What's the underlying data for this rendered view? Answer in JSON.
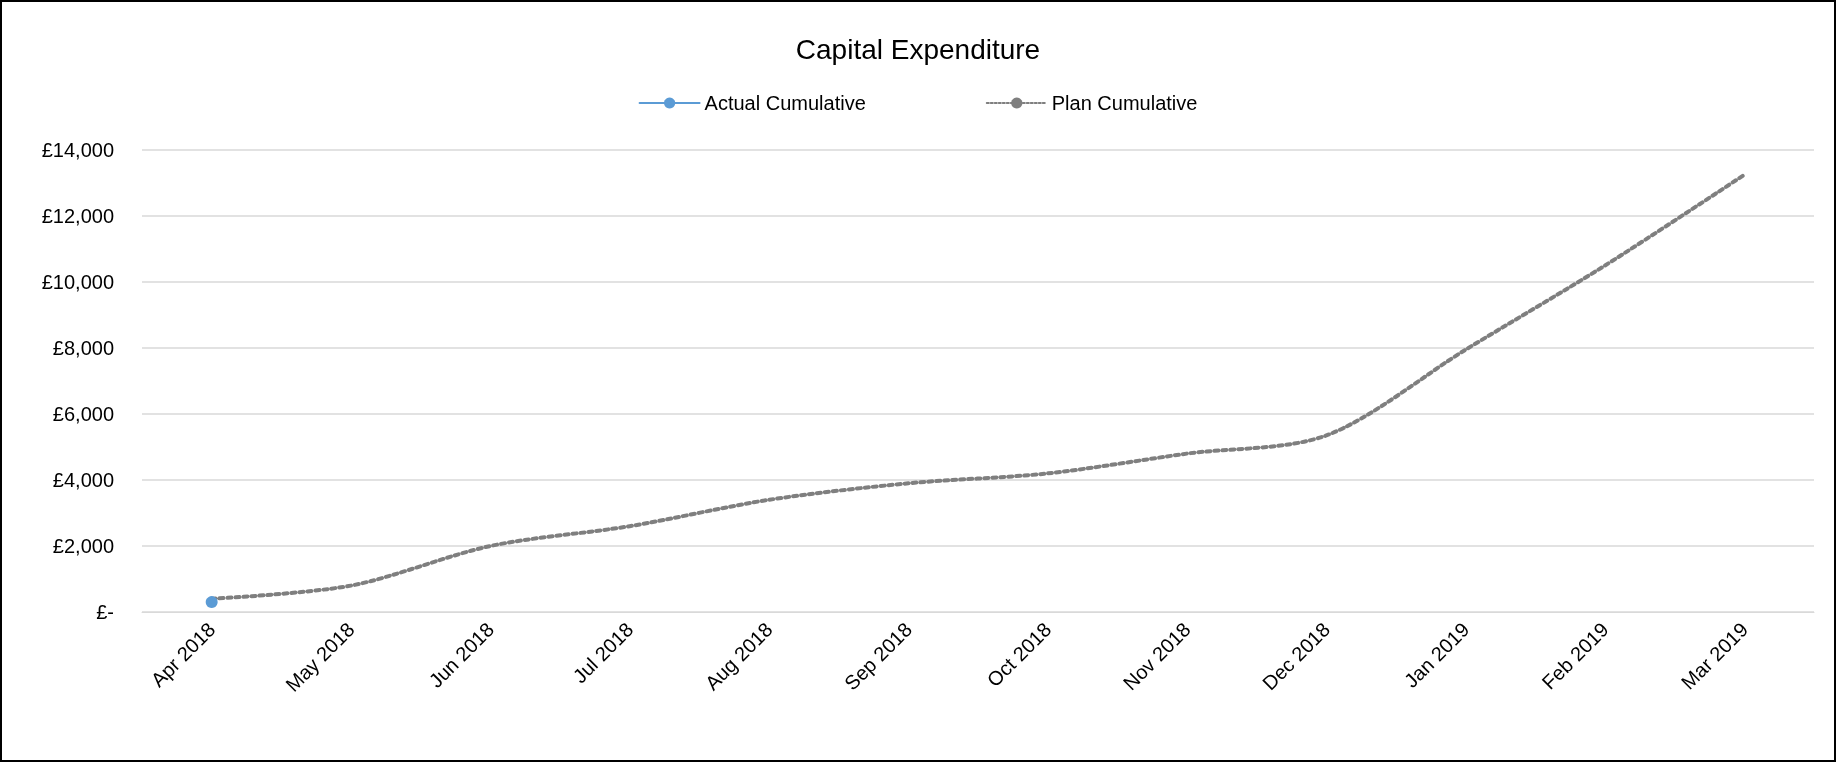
{
  "chart_data": {
    "type": "line",
    "title": "Capital Expenditure",
    "categories": [
      "Apr 2018",
      "May 2018",
      "Jun 2018",
      "Jul 2018",
      "Aug 2018",
      "Sep 2018",
      "Oct 2018",
      "Nov 2018",
      "Dec 2018",
      "Jan 2019",
      "Feb 2019",
      "Mar 2019"
    ],
    "series": [
      {
        "name": "Actual Cumulative",
        "color": "#5b9bd5",
        "marker": "circle",
        "line_style": "solid",
        "values": [
          300,
          null,
          null,
          null,
          null,
          null,
          null,
          null,
          null,
          null,
          null,
          null
        ]
      },
      {
        "name": "Plan Cumulative",
        "color": "#7f7f7f",
        "marker": "none",
        "line_style": "dotted",
        "values": [
          400,
          800,
          2000,
          2600,
          3400,
          3900,
          4200,
          4800,
          5350,
          7950,
          10500,
          13250
        ]
      }
    ],
    "ylim": [
      0,
      14000
    ],
    "yticks": [
      {
        "value": 0,
        "label": "£-"
      },
      {
        "value": 2000,
        "label": "£2,000"
      },
      {
        "value": 4000,
        "label": "£4,000"
      },
      {
        "value": 6000,
        "label": "£6,000"
      },
      {
        "value": 8000,
        "label": "£8,000"
      },
      {
        "value": 10000,
        "label": "£10,000"
      },
      {
        "value": 12000,
        "label": "£12,000"
      },
      {
        "value": 14000,
        "label": "£14,000"
      }
    ],
    "grid": "y",
    "legend": "top"
  }
}
